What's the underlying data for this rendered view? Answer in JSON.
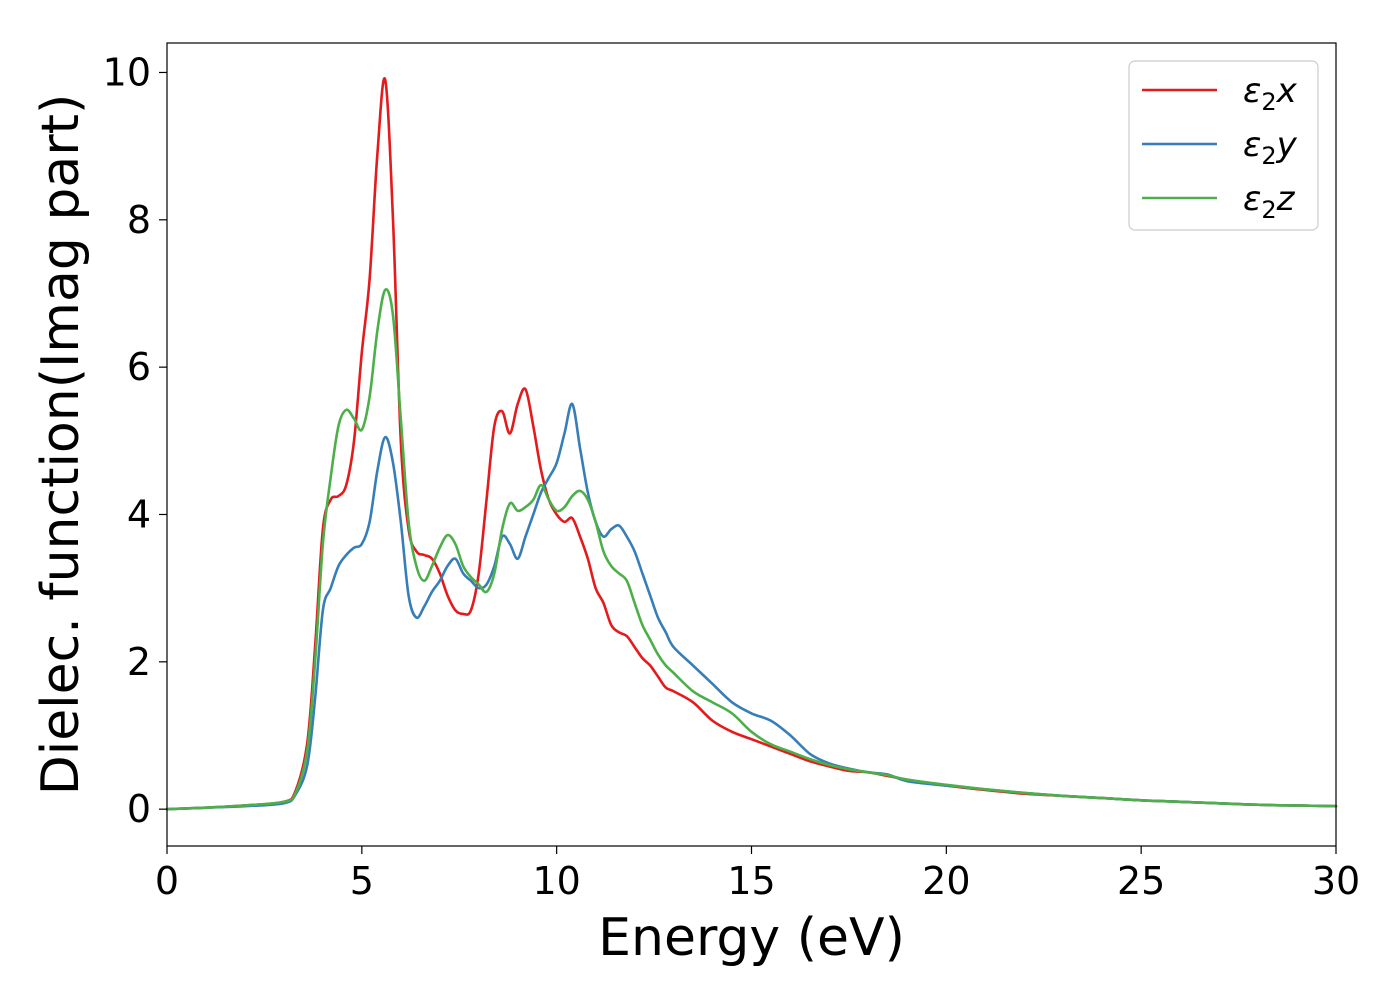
{
  "chart_data": {
    "type": "line",
    "title": "",
    "xlabel": "Energy (eV)",
    "ylabel": "Dielec. function(Imag part)",
    "xlim": [
      0,
      30
    ],
    "ylim": [
      -0.5,
      10.4
    ],
    "xticks": [
      0,
      5,
      10,
      15,
      20,
      25,
      30
    ],
    "yticks": [
      0,
      2,
      4,
      6,
      8,
      10
    ],
    "grid": false,
    "legend_position": "top-right",
    "series": [
      {
        "name": "ε₂x",
        "legend": {
          "base": "ε",
          "sub": "2",
          "tail": "x"
        },
        "color": "#e41a1c",
        "x": [
          0,
          1,
          2,
          3,
          3.3,
          3.6,
          3.8,
          4.0,
          4.2,
          4.4,
          4.6,
          4.8,
          5.0,
          5.2,
          5.4,
          5.6,
          5.8,
          6.0,
          6.2,
          6.4,
          6.6,
          6.8,
          7.0,
          7.2,
          7.4,
          7.6,
          7.8,
          8.0,
          8.2,
          8.4,
          8.6,
          8.8,
          9.0,
          9.2,
          9.4,
          9.6,
          9.8,
          10.0,
          10.2,
          10.4,
          10.6,
          10.8,
          11.0,
          11.2,
          11.4,
          11.6,
          11.8,
          12.0,
          12.2,
          12.4,
          12.6,
          12.8,
          13.0,
          13.5,
          14.0,
          14.5,
          15.0,
          15.5,
          16.0,
          16.5,
          17.0,
          17.5,
          18.0,
          18.5,
          19.0,
          20.0,
          21.0,
          22.0,
          23.0,
          24.0,
          25.0,
          26.0,
          27.0,
          28.0,
          29.0,
          30.0
        ],
        "y": [
          0.0,
          0.02,
          0.05,
          0.1,
          0.25,
          0.9,
          2.2,
          3.8,
          4.2,
          4.25,
          4.4,
          5.0,
          6.2,
          7.2,
          8.9,
          9.9,
          8.0,
          5.0,
          3.8,
          3.5,
          3.45,
          3.4,
          3.2,
          2.9,
          2.7,
          2.65,
          2.7,
          3.2,
          4.2,
          5.2,
          5.4,
          5.1,
          5.5,
          5.7,
          5.2,
          4.6,
          4.2,
          4.0,
          3.9,
          3.95,
          3.7,
          3.4,
          3.0,
          2.8,
          2.5,
          2.4,
          2.35,
          2.2,
          2.05,
          1.95,
          1.8,
          1.65,
          1.6,
          1.45,
          1.2,
          1.05,
          0.95,
          0.85,
          0.75,
          0.65,
          0.58,
          0.52,
          0.5,
          0.45,
          0.4,
          0.32,
          0.26,
          0.21,
          0.18,
          0.15,
          0.12,
          0.1,
          0.08,
          0.06,
          0.05,
          0.04
        ]
      },
      {
        "name": "ε₂y",
        "legend": {
          "base": "ε",
          "sub": "2",
          "tail": "y"
        },
        "color": "#377eb8",
        "x": [
          0,
          1,
          2,
          3,
          3.3,
          3.6,
          3.8,
          4.0,
          4.2,
          4.4,
          4.6,
          4.8,
          5.0,
          5.2,
          5.4,
          5.6,
          5.8,
          6.0,
          6.2,
          6.4,
          6.6,
          6.8,
          7.0,
          7.2,
          7.4,
          7.6,
          7.8,
          8.0,
          8.2,
          8.4,
          8.6,
          8.8,
          9.0,
          9.2,
          9.4,
          9.6,
          9.8,
          10.0,
          10.2,
          10.4,
          10.6,
          10.8,
          11.0,
          11.2,
          11.4,
          11.6,
          11.8,
          12.0,
          12.2,
          12.4,
          12.6,
          12.8,
          13.0,
          13.5,
          14.0,
          14.5,
          15.0,
          15.5,
          16.0,
          16.5,
          17.0,
          17.5,
          18.0,
          18.5,
          19.0,
          20.0,
          21.0,
          22.0,
          23.0,
          24.0,
          25.0,
          26.0,
          27.0,
          28.0,
          29.0,
          30.0
        ],
        "y": [
          0.0,
          0.02,
          0.04,
          0.08,
          0.2,
          0.6,
          1.5,
          2.7,
          3.0,
          3.3,
          3.45,
          3.55,
          3.6,
          3.9,
          4.6,
          5.05,
          4.7,
          3.9,
          2.9,
          2.6,
          2.75,
          2.95,
          3.1,
          3.3,
          3.4,
          3.2,
          3.1,
          3.0,
          3.05,
          3.3,
          3.7,
          3.6,
          3.4,
          3.7,
          4.0,
          4.3,
          4.5,
          4.7,
          5.1,
          5.5,
          4.9,
          4.3,
          3.9,
          3.7,
          3.8,
          3.85,
          3.7,
          3.5,
          3.2,
          2.9,
          2.6,
          2.4,
          2.2,
          1.95,
          1.7,
          1.45,
          1.3,
          1.2,
          1.0,
          0.75,
          0.62,
          0.55,
          0.5,
          0.47,
          0.38,
          0.32,
          0.27,
          0.22,
          0.18,
          0.15,
          0.12,
          0.1,
          0.08,
          0.06,
          0.05,
          0.04
        ]
      },
      {
        "name": "ε₂z",
        "legend": {
          "base": "ε",
          "sub": "2",
          "tail": "z"
        },
        "color": "#4daf4a",
        "x": [
          0,
          1,
          2,
          3,
          3.3,
          3.6,
          3.8,
          4.0,
          4.2,
          4.4,
          4.6,
          4.8,
          5.0,
          5.2,
          5.4,
          5.6,
          5.8,
          6.0,
          6.2,
          6.4,
          6.6,
          6.8,
          7.0,
          7.2,
          7.4,
          7.6,
          7.8,
          8.0,
          8.2,
          8.4,
          8.6,
          8.8,
          9.0,
          9.2,
          9.4,
          9.6,
          9.8,
          10.0,
          10.2,
          10.4,
          10.6,
          10.8,
          11.0,
          11.2,
          11.4,
          11.6,
          11.8,
          12.0,
          12.2,
          12.4,
          12.6,
          12.8,
          13.0,
          13.5,
          14.0,
          14.5,
          15.0,
          15.5,
          16.0,
          16.5,
          17.0,
          17.5,
          18.0,
          18.5,
          19.0,
          20.0,
          21.0,
          22.0,
          23.0,
          24.0,
          25.0,
          26.0,
          27.0,
          28.0,
          29.0,
          30.0
        ],
        "y": [
          0.0,
          0.02,
          0.05,
          0.1,
          0.22,
          0.8,
          2.0,
          3.6,
          4.5,
          5.2,
          5.42,
          5.3,
          5.15,
          5.6,
          6.5,
          7.05,
          6.7,
          5.3,
          3.9,
          3.3,
          3.1,
          3.3,
          3.55,
          3.72,
          3.6,
          3.3,
          3.15,
          3.05,
          2.95,
          3.2,
          3.8,
          4.15,
          4.05,
          4.1,
          4.2,
          4.4,
          4.2,
          4.05,
          4.1,
          4.25,
          4.32,
          4.2,
          3.9,
          3.5,
          3.3,
          3.2,
          3.1,
          2.8,
          2.5,
          2.3,
          2.1,
          1.95,
          1.85,
          1.6,
          1.45,
          1.3,
          1.05,
          0.88,
          0.78,
          0.68,
          0.6,
          0.54,
          0.5,
          0.46,
          0.4,
          0.33,
          0.27,
          0.22,
          0.18,
          0.15,
          0.12,
          0.1,
          0.08,
          0.06,
          0.05,
          0.04
        ]
      }
    ]
  }
}
